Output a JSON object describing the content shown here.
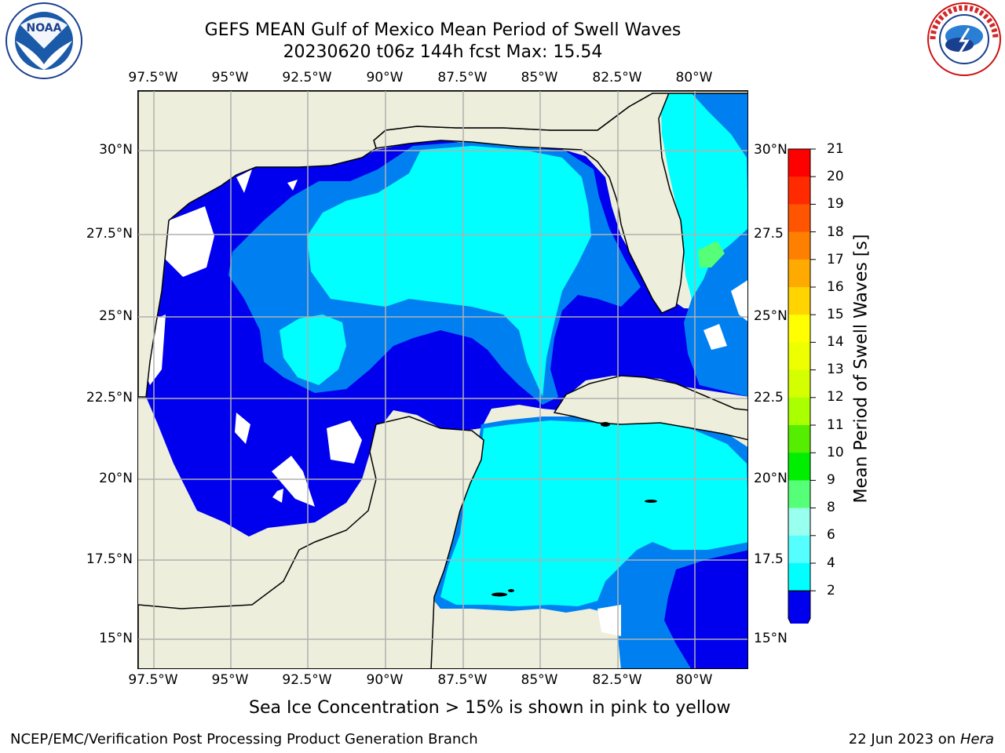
{
  "title": {
    "line1": "GEFS MEAN Gulf of Mexico Mean Period of Swell Waves",
    "line2": "20230620 t06z 144h fcst   Max: 15.54"
  },
  "map": {
    "lon_labels": [
      "97.5°W",
      "95°W",
      "92.5°W",
      "90°W",
      "87.5°W",
      "85°W",
      "82.5°W",
      "80°W"
    ],
    "lat_labels_left": [
      "30°N",
      "27.5°N",
      "25°N",
      "22.5°N",
      "20°N",
      "17.5°N",
      "15°N"
    ],
    "lat_labels_right": [
      "30°N",
      "27.5",
      "25°N",
      "22.5",
      "20°N",
      "17.5",
      "15°N"
    ],
    "colors": {
      "land": "#eeeedd",
      "coast": "#000000",
      "grid": "#b0b0b0",
      "level_2_4": "#0000ee",
      "level_4_6": "#0080f0",
      "level_6_8": "#00ffff",
      "level_8_9": "#55ffff",
      "level_9_10": "#55ff77",
      "level_12_14": "#ddff00",
      "level_14_15": "#eeff22"
    }
  },
  "colorbar": {
    "label": "Mean Period of Swell Waves [s]",
    "ticks": [
      "21",
      "20",
      "19",
      "18",
      "17",
      "16",
      "15",
      "14",
      "13",
      "12",
      "11",
      "10",
      "9",
      "8",
      "6",
      "4",
      "2"
    ],
    "colors": [
      "#ff0000",
      "#ff2a00",
      "#ff5500",
      "#ff7f00",
      "#ffaa00",
      "#ffd400",
      "#ffff00",
      "#eeff00",
      "#d4ff00",
      "#aaff00",
      "#55ee00",
      "#00ee00",
      "#55ff77",
      "#99ffee",
      "#55ffff",
      "#00ffff",
      "#0080f0",
      "#0000ee"
    ]
  },
  "note": "Sea Ice Concentration > 15% is shown in pink to yellow",
  "footer": {
    "left": "NCEP/EMC/Verification Post Processing Product Generation Branch",
    "right_date": "22 Jun 2023 on ",
    "right_machine": "Hera"
  },
  "logos": {
    "noaa": "NOAA",
    "nws": "NATIONAL WEATHER SERVICE"
  }
}
